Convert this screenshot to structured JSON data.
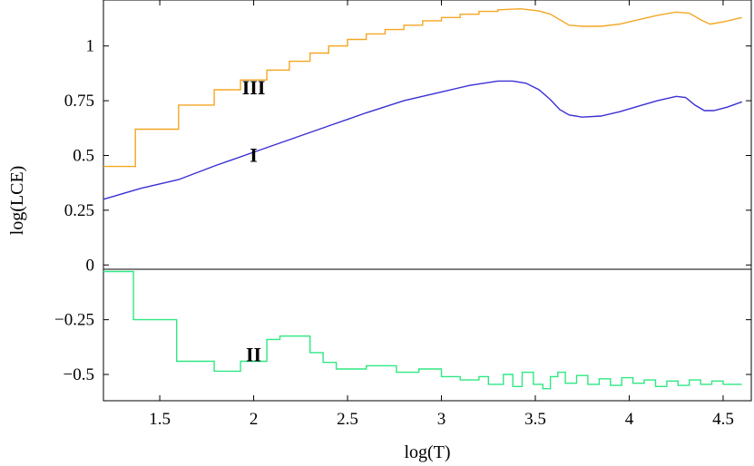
{
  "chart_data": {
    "type": "line",
    "title": "",
    "xlabel": "log(T)",
    "ylabel": "log(LCE)",
    "xlim": [
      1.2,
      4.65
    ],
    "ylim": [
      -0.62,
      1.21
    ],
    "x_ticks": [
      {
        "v": 1.5,
        "label": "1.5"
      },
      {
        "v": 2,
        "label": "2"
      },
      {
        "v": 2.5,
        "label": "2.5"
      },
      {
        "v": 3,
        "label": "3"
      },
      {
        "v": 3.5,
        "label": "3.5"
      },
      {
        "v": 4,
        "label": "4"
      },
      {
        "v": 4.5,
        "label": "4.5"
      }
    ],
    "y_ticks": [
      {
        "v": 1,
        "label": "1"
      },
      {
        "v": 0.75,
        "label": "0.75"
      },
      {
        "v": 0.5,
        "label": "0.5"
      },
      {
        "v": 0.25,
        "label": "0.25"
      },
      {
        "v": 0,
        "label": "0"
      },
      {
        "v": -0.25,
        "label": "−0.25"
      },
      {
        "v": -0.5,
        "label": "−0.5"
      }
    ],
    "zero_line": true,
    "series": [
      {
        "name": "III",
        "label_pos": [
          2.0,
          0.78
        ],
        "color": "#f5a623",
        "step": true,
        "points": [
          [
            1.2,
            0.45
          ],
          [
            1.37,
            0.45
          ],
          [
            1.37,
            0.62
          ],
          [
            1.6,
            0.62
          ],
          [
            1.6,
            0.73
          ],
          [
            1.79,
            0.73
          ],
          [
            1.79,
            0.8
          ],
          [
            1.93,
            0.8
          ],
          [
            1.93,
            0.845
          ],
          [
            2.07,
            0.845
          ],
          [
            2.07,
            0.89
          ],
          [
            2.19,
            0.89
          ],
          [
            2.19,
            0.93
          ],
          [
            2.3,
            0.93
          ],
          [
            2.3,
            0.968
          ],
          [
            2.4,
            0.968
          ],
          [
            2.4,
            1.0
          ],
          [
            2.5,
            1.0
          ],
          [
            2.5,
            1.03
          ],
          [
            2.6,
            1.03
          ],
          [
            2.6,
            1.055
          ],
          [
            2.7,
            1.055
          ],
          [
            2.7,
            1.075
          ],
          [
            2.8,
            1.075
          ],
          [
            2.8,
            1.095
          ],
          [
            2.9,
            1.095
          ],
          [
            2.9,
            1.115
          ],
          [
            3.0,
            1.115
          ],
          [
            3.0,
            1.13
          ],
          [
            3.1,
            1.13
          ],
          [
            3.1,
            1.145
          ],
          [
            3.2,
            1.145
          ],
          [
            3.2,
            1.158
          ],
          [
            3.3,
            1.158
          ],
          [
            3.3,
            1.165
          ],
          [
            3.42,
            1.17
          ],
          [
            3.52,
            1.16
          ],
          [
            3.58,
            1.145
          ],
          [
            3.63,
            1.12
          ],
          [
            3.68,
            1.095
          ],
          [
            3.75,
            1.09
          ],
          [
            3.85,
            1.09
          ],
          [
            3.95,
            1.1
          ],
          [
            4.05,
            1.12
          ],
          [
            4.15,
            1.14
          ],
          [
            4.25,
            1.155
          ],
          [
            4.32,
            1.15
          ],
          [
            4.38,
            1.12
          ],
          [
            4.43,
            1.1
          ],
          [
            4.5,
            1.11
          ],
          [
            4.6,
            1.13
          ]
        ]
      },
      {
        "name": "I",
        "label_pos": [
          2.0,
          0.47
        ],
        "color": "#3a2fd4",
        "step": false,
        "points": [
          [
            1.2,
            0.3
          ],
          [
            1.4,
            0.35
          ],
          [
            1.6,
            0.39
          ],
          [
            1.8,
            0.455
          ],
          [
            2.0,
            0.515
          ],
          [
            2.2,
            0.575
          ],
          [
            2.4,
            0.635
          ],
          [
            2.6,
            0.695
          ],
          [
            2.8,
            0.75
          ],
          [
            3.0,
            0.79
          ],
          [
            3.15,
            0.82
          ],
          [
            3.3,
            0.84
          ],
          [
            3.38,
            0.84
          ],
          [
            3.45,
            0.83
          ],
          [
            3.52,
            0.8
          ],
          [
            3.58,
            0.755
          ],
          [
            3.63,
            0.71
          ],
          [
            3.68,
            0.685
          ],
          [
            3.75,
            0.675
          ],
          [
            3.85,
            0.68
          ],
          [
            3.95,
            0.7
          ],
          [
            4.05,
            0.725
          ],
          [
            4.15,
            0.75
          ],
          [
            4.25,
            0.77
          ],
          [
            4.3,
            0.765
          ],
          [
            4.35,
            0.73
          ],
          [
            4.4,
            0.705
          ],
          [
            4.45,
            0.705
          ],
          [
            4.52,
            0.72
          ],
          [
            4.6,
            0.745
          ]
        ]
      },
      {
        "name": "II",
        "label_pos": [
          2.0,
          -0.44
        ],
        "color": "#2ee882",
        "step": true,
        "points": [
          [
            1.2,
            -0.03
          ],
          [
            1.36,
            -0.03
          ],
          [
            1.36,
            -0.25
          ],
          [
            1.59,
            -0.25
          ],
          [
            1.59,
            -0.44
          ],
          [
            1.79,
            -0.44
          ],
          [
            1.79,
            -0.485
          ],
          [
            1.93,
            -0.485
          ],
          [
            1.93,
            -0.44
          ],
          [
            2.07,
            -0.44
          ],
          [
            2.07,
            -0.34
          ],
          [
            2.14,
            -0.34
          ],
          [
            2.14,
            -0.325
          ],
          [
            2.3,
            -0.325
          ],
          [
            2.3,
            -0.4
          ],
          [
            2.37,
            -0.4
          ],
          [
            2.37,
            -0.445
          ],
          [
            2.44,
            -0.445
          ],
          [
            2.44,
            -0.475
          ],
          [
            2.6,
            -0.475
          ],
          [
            2.6,
            -0.46
          ],
          [
            2.76,
            -0.46
          ],
          [
            2.76,
            -0.49
          ],
          [
            2.88,
            -0.49
          ],
          [
            2.88,
            -0.475
          ],
          [
            3.0,
            -0.475
          ],
          [
            3.0,
            -0.51
          ],
          [
            3.1,
            -0.51
          ],
          [
            3.1,
            -0.525
          ],
          [
            3.2,
            -0.525
          ],
          [
            3.2,
            -0.51
          ],
          [
            3.25,
            -0.51
          ],
          [
            3.25,
            -0.545
          ],
          [
            3.33,
            -0.545
          ],
          [
            3.33,
            -0.5
          ],
          [
            3.38,
            -0.5
          ],
          [
            3.38,
            -0.555
          ],
          [
            3.43,
            -0.555
          ],
          [
            3.43,
            -0.49
          ],
          [
            3.49,
            -0.49
          ],
          [
            3.49,
            -0.545
          ],
          [
            3.54,
            -0.545
          ],
          [
            3.54,
            -0.565
          ],
          [
            3.58,
            -0.565
          ],
          [
            3.58,
            -0.51
          ],
          [
            3.62,
            -0.51
          ],
          [
            3.62,
            -0.49
          ],
          [
            3.66,
            -0.49
          ],
          [
            3.66,
            -0.54
          ],
          [
            3.72,
            -0.54
          ],
          [
            3.72,
            -0.505
          ],
          [
            3.78,
            -0.505
          ],
          [
            3.78,
            -0.545
          ],
          [
            3.84,
            -0.545
          ],
          [
            3.84,
            -0.52
          ],
          [
            3.9,
            -0.52
          ],
          [
            3.9,
            -0.55
          ],
          [
            3.96,
            -0.55
          ],
          [
            3.96,
            -0.515
          ],
          [
            4.02,
            -0.515
          ],
          [
            4.02,
            -0.54
          ],
          [
            4.08,
            -0.54
          ],
          [
            4.08,
            -0.525
          ],
          [
            4.14,
            -0.525
          ],
          [
            4.14,
            -0.555
          ],
          [
            4.2,
            -0.555
          ],
          [
            4.2,
            -0.53
          ],
          [
            4.26,
            -0.53
          ],
          [
            4.26,
            -0.55
          ],
          [
            4.32,
            -0.55
          ],
          [
            4.32,
            -0.525
          ],
          [
            4.38,
            -0.525
          ],
          [
            4.38,
            -0.545
          ],
          [
            4.44,
            -0.545
          ],
          [
            4.44,
            -0.53
          ],
          [
            4.5,
            -0.53
          ],
          [
            4.5,
            -0.545
          ],
          [
            4.6,
            -0.545
          ]
        ]
      }
    ]
  }
}
